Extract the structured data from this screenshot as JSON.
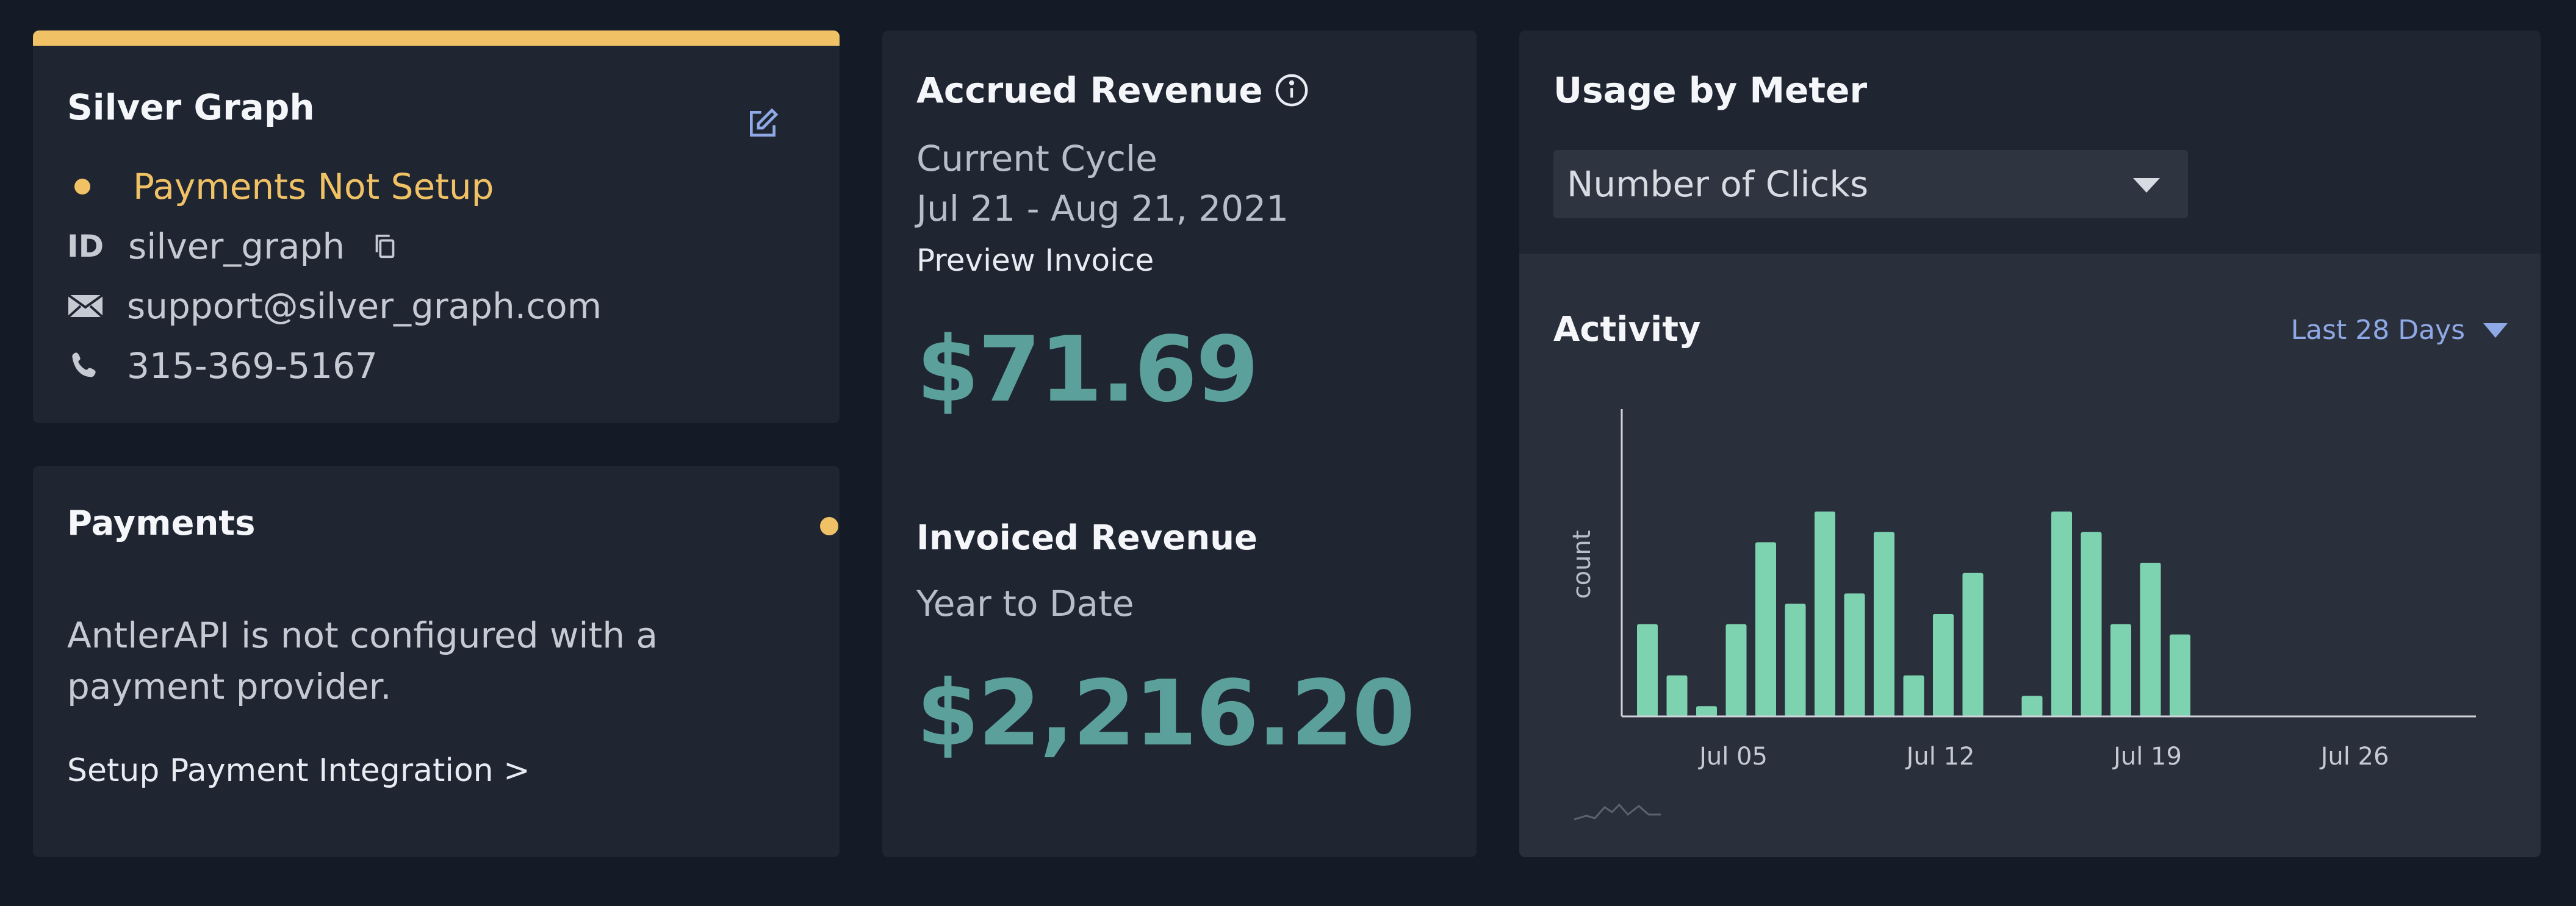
{
  "customer": {
    "name": "Silver Graph",
    "status": "Payments Not Setup",
    "id_label": "ID",
    "id": "silver_graph",
    "email": "support@silver_graph.com",
    "phone": "315-369-5167"
  },
  "payments": {
    "title": "Payments",
    "message": "AntlerAPI is not configured with a payment provider.",
    "link": "Setup Payment Integration >"
  },
  "revenue": {
    "accrued_title": "Accrued Revenue",
    "cycle_label": "Current Cycle",
    "cycle_range": "Jul 21 - Aug 21, 2021",
    "preview_link": "Preview Invoice",
    "accrued_amount": "$71.69",
    "invoiced_title": "Invoiced Revenue",
    "ytd_label": "Year to Date",
    "invoiced_amount": "$2,216.20"
  },
  "usage": {
    "title": "Usage by Meter",
    "meter_selected": "Number of Clicks",
    "activity_title": "Activity",
    "range_selected": "Last 28 Days"
  },
  "colors": {
    "accent_yellow": "#f0c265",
    "money_teal": "#5ba09b",
    "bar_green": "#7dd3b0",
    "link_blue": "#8fa8e6"
  },
  "chart_data": {
    "type": "bar",
    "ylabel": "count",
    "xlabel": "",
    "x_tick_labels": [
      "Jul 05",
      "Jul 12",
      "Jul 19",
      "Jul 26"
    ],
    "x_tick_day_index": [
      2,
      9,
      16,
      23
    ],
    "values": [
      9,
      4,
      1,
      9,
      17,
      11,
      20,
      12,
      18,
      4,
      10,
      14,
      0,
      2,
      20,
      18,
      9,
      15,
      8,
      0,
      0,
      0,
      0,
      0,
      0,
      0,
      0,
      0
    ],
    "ylim": [
      0,
      30
    ],
    "grid": false
  }
}
